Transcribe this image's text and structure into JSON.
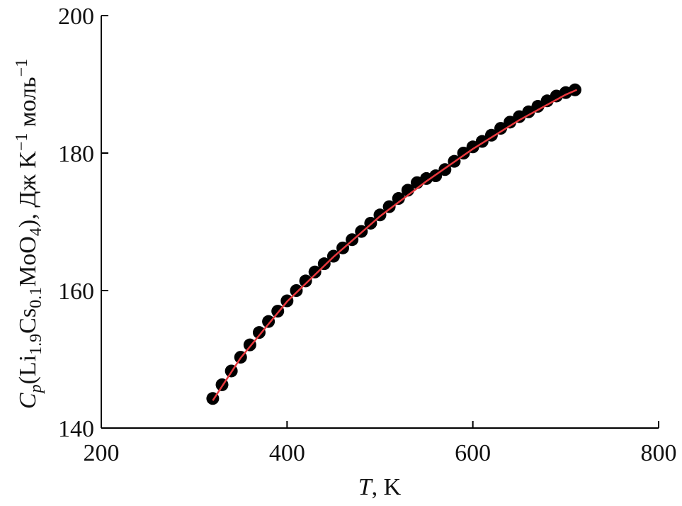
{
  "chart_data": {
    "type": "scatter",
    "xlabel": [
      "T",
      ", K"
    ],
    "ylabel": [
      "C",
      "p",
      "(Li",
      "1.9",
      "Cs",
      "0.1",
      "MoO",
      "4",
      "), Дж K",
      "−1",
      " моль",
      "−1"
    ],
    "xlim": [
      200,
      800
    ],
    "xticks": [
      200,
      400,
      600,
      800
    ],
    "ylim": [
      140,
      200
    ],
    "yticks": [
      140,
      160,
      180,
      200
    ],
    "series": [
      {
        "color": "#000000",
        "x": [
          320,
          330,
          340,
          350,
          360,
          370,
          380,
          390,
          400,
          410,
          420,
          430,
          440,
          450,
          460,
          470,
          480,
          490,
          500,
          510,
          520,
          530,
          540,
          550,
          560,
          570,
          580,
          590,
          600,
          610,
          620,
          630,
          640,
          650,
          660,
          670,
          680,
          690,
          700,
          710
        ],
        "values": [
          144.3,
          146.3,
          148.3,
          150.3,
          152.1,
          153.9,
          155.5,
          157.0,
          158.5,
          160.0,
          161.4,
          162.7,
          163.9,
          165.0,
          166.2,
          167.4,
          168.6,
          169.8,
          171.0,
          172.2,
          173.4,
          174.6,
          175.7,
          176.3,
          176.7,
          177.6,
          178.8,
          180.0,
          180.9,
          181.7,
          182.6,
          183.6,
          184.5,
          185.3,
          186.0,
          186.8,
          187.6,
          188.3,
          188.8,
          189.2
        ]
      },
      {
        "type": "line",
        "color": "#e8383d",
        "x": [
          320,
          350,
          400,
          450,
          500,
          550,
          600,
          650,
          700,
          712
        ],
        "values": [
          144.0,
          150.2,
          158.4,
          164.9,
          170.8,
          175.9,
          180.6,
          184.8,
          188.5,
          189.2
        ]
      }
    ]
  }
}
